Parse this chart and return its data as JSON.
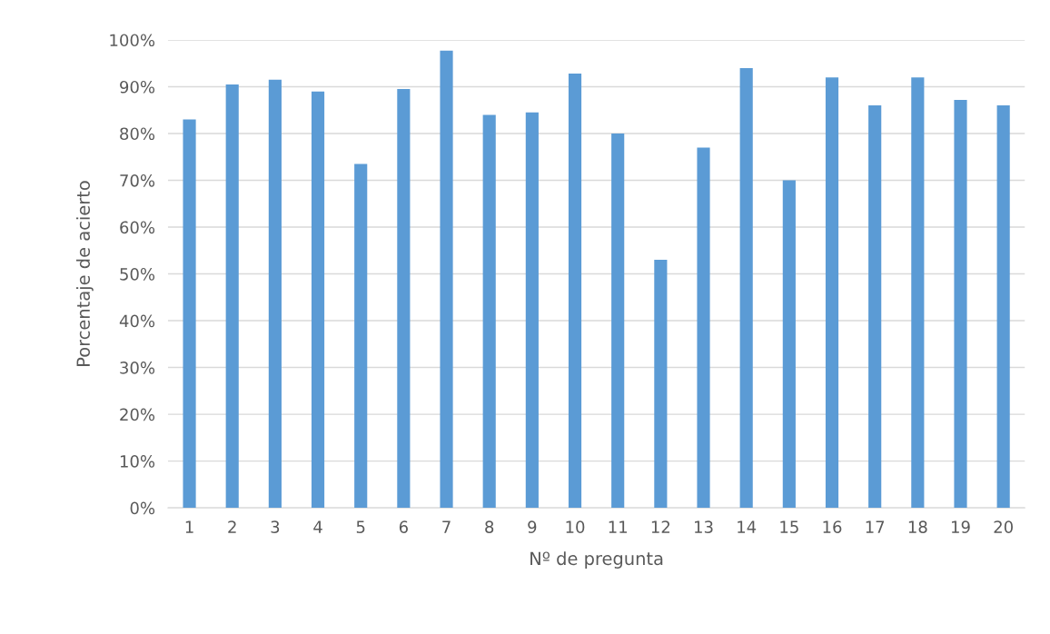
{
  "chart_data": {
    "type": "bar",
    "xlabel": "Nº de pregunta",
    "ylabel": "Porcentaje de acierto",
    "categories": [
      "1",
      "2",
      "3",
      "4",
      "5",
      "6",
      "7",
      "8",
      "9",
      "10",
      "11",
      "12",
      "13",
      "14",
      "15",
      "16",
      "17",
      "18",
      "19",
      "20"
    ],
    "values": [
      83,
      90.5,
      91.5,
      89,
      73.5,
      89.5,
      97.7,
      84,
      84.5,
      92.8,
      80,
      53,
      77,
      94,
      70,
      92,
      86,
      92,
      87.2,
      86
    ],
    "color": "#5b9bd5",
    "ylim": [
      0,
      100
    ],
    "yticks": [
      {
        "value": 0,
        "label": "0%"
      },
      {
        "value": 10,
        "label": "10%"
      },
      {
        "value": 20,
        "label": "20%"
      },
      {
        "value": 30,
        "label": "30%"
      },
      {
        "value": 40,
        "label": "40%"
      },
      {
        "value": 50,
        "label": "50%"
      },
      {
        "value": 60,
        "label": "60%"
      },
      {
        "value": 70,
        "label": "70%"
      },
      {
        "value": 80,
        "label": "80%"
      },
      {
        "value": 90,
        "label": "90%"
      },
      {
        "value": 100,
        "label": "100%"
      }
    ],
    "grid": "y",
    "legend": false
  }
}
